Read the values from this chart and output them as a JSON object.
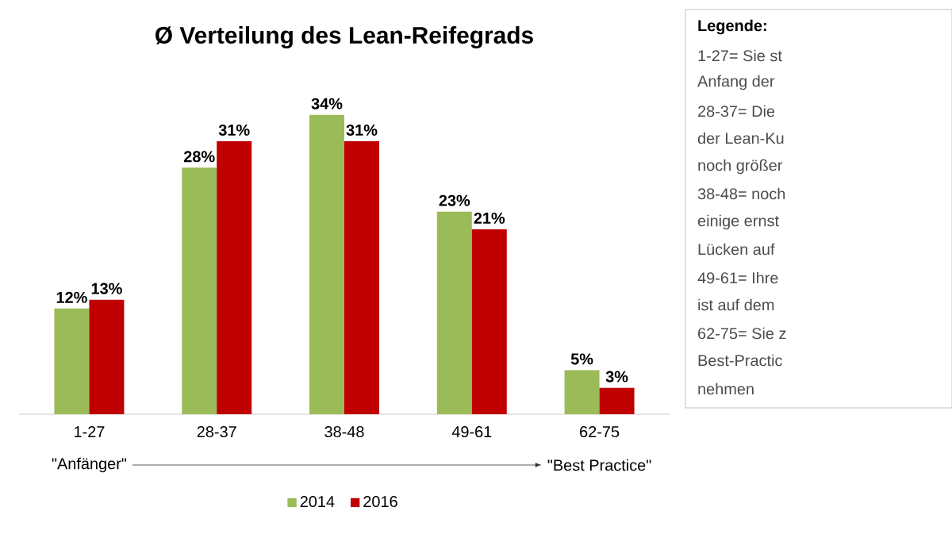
{
  "chart_data": {
    "type": "bar",
    "title": "Ø Verteilung des Lean-Reifegrads",
    "categories": [
      "1-27",
      "28-37",
      "38-48",
      "49-61",
      "62-75"
    ],
    "series": [
      {
        "name": "2014",
        "color": "#9bbb59",
        "values": [
          12,
          28,
          34,
          23,
          5
        ],
        "value_labels": [
          "12%",
          "28%",
          "34%",
          "23%",
          "5%"
        ]
      },
      {
        "name": "2016",
        "color": "#c00000",
        "values": [
          13,
          31,
          31,
          21,
          3
        ],
        "value_labels": [
          "13%",
          "31%",
          "31%",
          "21%",
          "3%"
        ]
      }
    ],
    "legend": "bottom",
    "annotations": [
      "\"Anfänger\"",
      "\"Best Practice\"",
      "Legende:",
      "1-27= Sie st",
      "Anfang der",
      "28-37= Die",
      "der Lean-Ku",
      "noch größer",
      "38-48= noch",
      "einige ernst",
      "Lücken auf",
      "49-61= Ihre",
      "ist auf dem",
      "62-75= Sie z",
      "Best-Practic",
      "nehmen"
    ]
  }
}
